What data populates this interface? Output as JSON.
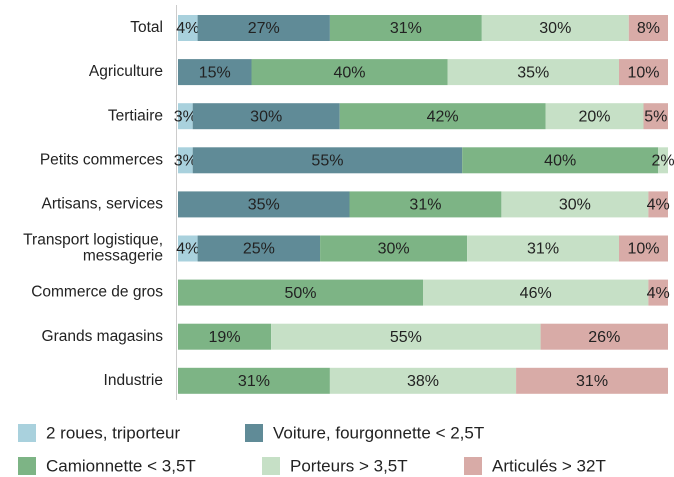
{
  "chart_data": {
    "type": "stacked-bar-horizontal",
    "categories": [
      "Total",
      "Agriculture",
      "Tertiaire",
      "Petits commerces",
      "Artisans, services",
      "Transport logistique,\nmessagerie",
      "Commerce de gros",
      "Grands magasins",
      "Industrie"
    ],
    "xlim": [
      0,
      100
    ],
    "series": [
      {
        "name": "2 roues, triporteur",
        "color": "#a9d1dd",
        "values": [
          4,
          null,
          3,
          3,
          null,
          4,
          null,
          null,
          null
        ],
        "value_labels": [
          "4%",
          null,
          "3%",
          "3%",
          null,
          "4%",
          null,
          null,
          null
        ]
      },
      {
        "name": "Voiture, fourgonnette < 2,5T",
        "color": "#608b97",
        "values": [
          27,
          15,
          30,
          55,
          35,
          25,
          null,
          null,
          null
        ],
        "value_labels": [
          "27%",
          "15%",
          "30%",
          "55%",
          "35%",
          "25%",
          null,
          null,
          null
        ]
      },
      {
        "name": "Camionnette < 3,5T",
        "color": "#7db485",
        "values": [
          31,
          40,
          42,
          40,
          31,
          30,
          50,
          19,
          31
        ],
        "value_labels": [
          "31%",
          "40%",
          "42%",
          "40%",
          "31%",
          "30%",
          "50%",
          "19%",
          "31%"
        ]
      },
      {
        "name": "Porteurs > 3,5T",
        "color": "#c6e0c6",
        "values": [
          30,
          35,
          20,
          2,
          30,
          31,
          46,
          55,
          38
        ],
        "value_labels": [
          "30%",
          "35%",
          "20%",
          "2%",
          "30%",
          "31%",
          "46%",
          "55%",
          "38%"
        ]
      },
      {
        "name": "Articulés > 32T",
        "color": "#d8aba7",
        "values": [
          8,
          10,
          5,
          null,
          4,
          10,
          4,
          26,
          31
        ],
        "value_labels": [
          "8%",
          "10%",
          "5%",
          null,
          "4%",
          "10%",
          "4%",
          "26%",
          "31%"
        ]
      }
    ]
  }
}
